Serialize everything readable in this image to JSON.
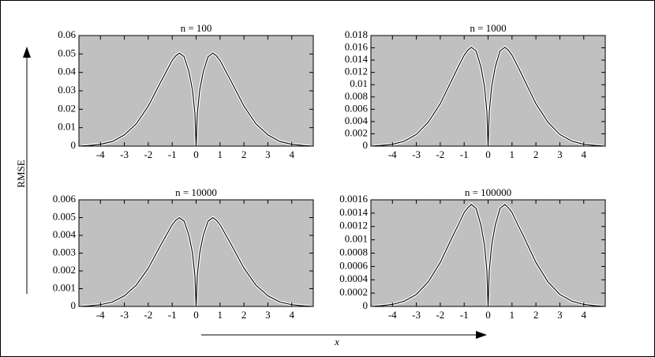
{
  "axis_labels": {
    "y": "RMSE",
    "x": "x"
  },
  "chart_data": [
    {
      "type": "line",
      "title": "n = 100",
      "background": "#c0c0c0",
      "x": [
        -4.75,
        -4.5,
        -4,
        -3.5,
        -3,
        -2.5,
        -2,
        -1.5,
        -1.25,
        -1,
        -0.85,
        -0.7,
        -0.5,
        -0.3,
        -0.15,
        -0.05,
        0,
        0.05,
        0.15,
        0.3,
        0.5,
        0.7,
        0.85,
        1,
        1.25,
        1.5,
        2,
        2.5,
        3,
        3.5,
        4,
        4.5,
        4.75
      ],
      "series": [
        {
          "color": "#000000",
          "values": [
            0.00015,
            0.0003,
            0.001,
            0.0025,
            0.0061,
            0.0121,
            0.0217,
            0.0343,
            0.0404,
            0.0465,
            0.049,
            0.0505,
            0.0485,
            0.0404,
            0.0303,
            0.0177,
            0,
            0.0177,
            0.0303,
            0.0404,
            0.0485,
            0.0505,
            0.049,
            0.0465,
            0.0404,
            0.0343,
            0.0217,
            0.0121,
            0.0061,
            0.0025,
            0.001,
            0.0003,
            0.00015
          ]
        }
      ],
      "xlim": [
        -4.9,
        4.9
      ],
      "xticks": [
        -4,
        -3,
        -2,
        -1,
        0,
        1,
        2,
        3,
        4
      ],
      "ylim": [
        0,
        0.06
      ],
      "yticks": [
        0,
        0.01,
        0.02,
        0.03,
        0.04,
        0.05,
        0.06
      ]
    },
    {
      "type": "line",
      "title": "n = 1000",
      "background": "#c0c0c0",
      "x": [
        -4.75,
        -4.5,
        -4,
        -3.5,
        -3,
        -2.5,
        -2,
        -1.5,
        -1.25,
        -1,
        -0.85,
        -0.7,
        -0.5,
        -0.3,
        -0.15,
        -0.05,
        0,
        0.05,
        0.15,
        0.3,
        0.5,
        0.7,
        0.85,
        1,
        1.25,
        1.5,
        2,
        2.5,
        3,
        3.5,
        4,
        4.5,
        4.75
      ],
      "series": [
        {
          "color": "#000000",
          "values": [
            5e-05,
            0.0001,
            0.0003,
            0.0008,
            0.0019,
            0.0039,
            0.0069,
            0.0109,
            0.0129,
            0.0148,
            0.0156,
            0.0161,
            0.0155,
            0.0129,
            0.0097,
            0.0056,
            0,
            0.0056,
            0.0097,
            0.0129,
            0.0155,
            0.0161,
            0.0156,
            0.0148,
            0.0129,
            0.0109,
            0.0069,
            0.0039,
            0.0019,
            0.0008,
            0.0003,
            0.0001,
            5e-05
          ]
        }
      ],
      "xlim": [
        -4.9,
        4.9
      ],
      "xticks": [
        -4,
        -3,
        -2,
        -1,
        0,
        1,
        2,
        3,
        4
      ],
      "ylim": [
        0,
        0.018
      ],
      "yticks": [
        0,
        0.002,
        0.004,
        0.006,
        0.008,
        0.01,
        0.012,
        0.014,
        0.016,
        0.018
      ]
    },
    {
      "type": "line",
      "title": "n = 10000",
      "background": "#c0c0c0",
      "x": [
        -4.75,
        -4.5,
        -4,
        -3.5,
        -3,
        -2.5,
        -2,
        -1.5,
        -1.25,
        -1,
        -0.85,
        -0.7,
        -0.5,
        -0.3,
        -0.15,
        -0.05,
        0,
        0.05,
        0.15,
        0.3,
        0.5,
        0.7,
        0.85,
        1,
        1.25,
        1.5,
        2,
        2.5,
        3,
        3.5,
        4,
        4.5,
        4.75
      ],
      "series": [
        {
          "color": "#000000",
          "values": [
            1.5e-05,
            3e-05,
            0.0001,
            0.00025,
            0.0006,
            0.0012,
            0.00215,
            0.0034,
            0.004,
            0.0046,
            0.00485,
            0.005,
            0.0048,
            0.004,
            0.003,
            0.00175,
            0,
            0.00175,
            0.003,
            0.004,
            0.0048,
            0.005,
            0.00485,
            0.0046,
            0.004,
            0.0034,
            0.00215,
            0.0012,
            0.0006,
            0.00025,
            0.0001,
            3e-05,
            1.5e-05
          ]
        }
      ],
      "xlim": [
        -4.9,
        4.9
      ],
      "xticks": [
        -4,
        -3,
        -2,
        -1,
        0,
        1,
        2,
        3,
        4
      ],
      "ylim": [
        0,
        0.006
      ],
      "yticks": [
        0,
        0.001,
        0.002,
        0.003,
        0.004,
        0.005,
        0.006
      ]
    },
    {
      "type": "line",
      "title": "n = 100000",
      "background": "#c0c0c0",
      "x": [
        -4.75,
        -4.5,
        -4,
        -3.5,
        -3,
        -2.5,
        -2,
        -1.5,
        -1.25,
        -1,
        -0.85,
        -0.7,
        -0.5,
        -0.3,
        -0.15,
        -0.05,
        0,
        0.05,
        0.15,
        0.3,
        0.5,
        0.7,
        0.85,
        1,
        1.25,
        1.5,
        2,
        2.5,
        3,
        3.5,
        4,
        4.5,
        4.75
      ],
      "series": [
        {
          "color": "#000000",
          "values": [
            5e-06,
            1e-05,
            3e-05,
            8e-05,
            0.00018,
            0.00037,
            0.00066,
            0.00104,
            0.00122,
            0.00141,
            0.00148,
            0.00153,
            0.00147,
            0.00122,
            0.00092,
            0.00054,
            0,
            0.00054,
            0.00092,
            0.00122,
            0.00147,
            0.00153,
            0.00148,
            0.00141,
            0.00122,
            0.00104,
            0.00066,
            0.00037,
            0.00018,
            8e-05,
            3e-05,
            1e-05,
            5e-06
          ]
        }
      ],
      "xlim": [
        -4.9,
        4.9
      ],
      "xticks": [
        -4,
        -3,
        -2,
        -1,
        0,
        1,
        2,
        3,
        4
      ],
      "ylim": [
        0,
        0.0016
      ],
      "yticks": [
        0,
        0.0002,
        0.0004,
        0.0006,
        0.0008,
        0.001,
        0.0012,
        0.0014,
        0.0016
      ]
    }
  ]
}
